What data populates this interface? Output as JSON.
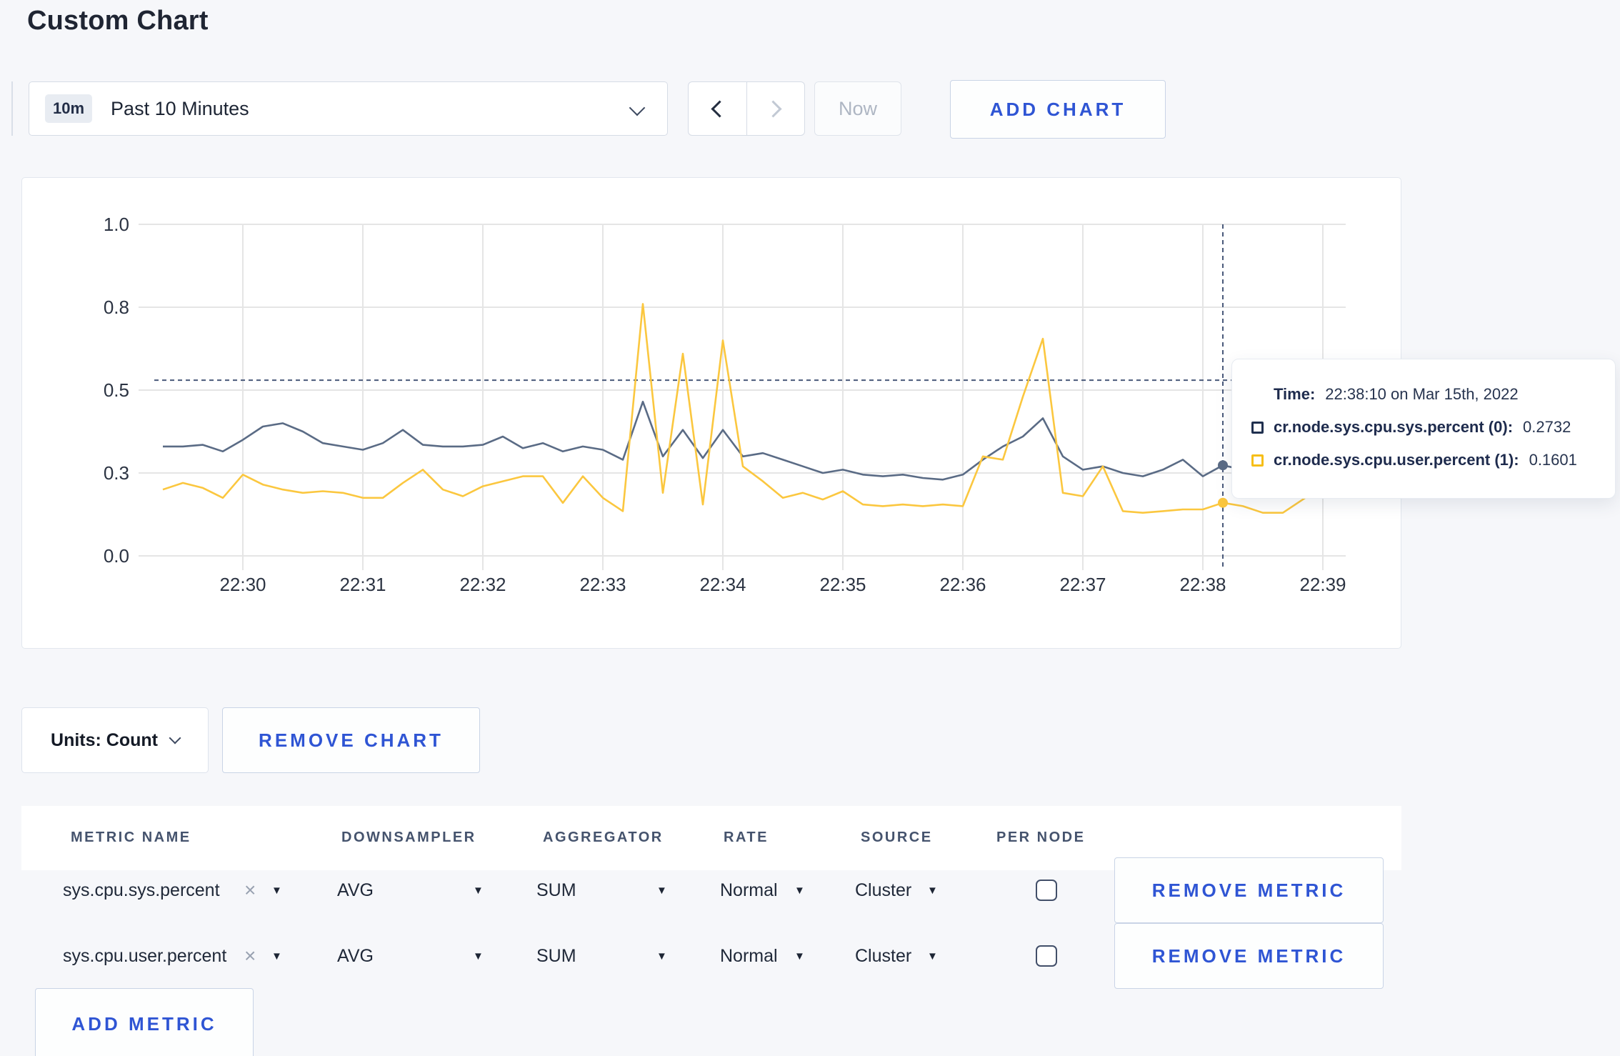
{
  "page": {
    "title": "Custom Chart"
  },
  "toolbar": {
    "range_badge": "10m",
    "range_label": "Past 10 Minutes",
    "now_label": "Now",
    "add_chart_label": "ADD CHART"
  },
  "chart_data": {
    "type": "line",
    "title": "",
    "xlabel": "",
    "ylabel": "",
    "ylim": [
      0,
      1
    ],
    "grid": true,
    "x_tick_labels": [
      "22:30",
      "22:31",
      "22:32",
      "22:33",
      "22:34",
      "22:35",
      "22:36",
      "22:37",
      "22:38",
      "22:39"
    ],
    "y_ticks": [
      {
        "v": 0.0,
        "label": "0.0"
      },
      {
        "v": 0.25,
        "label": "0.3"
      },
      {
        "v": 0.5,
        "label": "0.5"
      },
      {
        "v": 0.75,
        "label": "0.8"
      },
      {
        "v": 1.0,
        "label": "1.0"
      }
    ],
    "x_start_label": "22:29:20",
    "x_step_seconds": 10,
    "crosshair": {
      "index": 53,
      "time": "22:38:10",
      "h_value": 0.53
    },
    "series": [
      {
        "name": "cr.node.sys.cpu.sys.percent (0)",
        "color": "#5a6b85",
        "values": [
          0.33,
          0.33,
          0.335,
          0.315,
          0.35,
          0.39,
          0.4,
          0.375,
          0.34,
          0.33,
          0.32,
          0.34,
          0.38,
          0.335,
          0.33,
          0.33,
          0.335,
          0.36,
          0.325,
          0.34,
          0.315,
          0.33,
          0.32,
          0.29,
          0.465,
          0.3,
          0.38,
          0.295,
          0.38,
          0.3,
          0.31,
          0.29,
          0.27,
          0.25,
          0.26,
          0.245,
          0.24,
          0.245,
          0.235,
          0.23,
          0.245,
          0.29,
          0.33,
          0.36,
          0.415,
          0.3,
          0.26,
          0.27,
          0.25,
          0.24,
          0.26,
          0.29,
          0.24,
          0.2732,
          0.26,
          0.27,
          0.26,
          0.27,
          0.28,
          0.3
        ]
      },
      {
        "name": "cr.node.sys.cpu.user.percent (1)",
        "color": "#fbc73f",
        "values": [
          0.2,
          0.22,
          0.205,
          0.175,
          0.245,
          0.215,
          0.2,
          0.19,
          0.195,
          0.19,
          0.175,
          0.175,
          0.22,
          0.26,
          0.2,
          0.18,
          0.21,
          0.225,
          0.24,
          0.24,
          0.16,
          0.24,
          0.175,
          0.135,
          0.76,
          0.19,
          0.61,
          0.155,
          0.65,
          0.27,
          0.225,
          0.175,
          0.19,
          0.17,
          0.195,
          0.155,
          0.15,
          0.155,
          0.15,
          0.155,
          0.15,
          0.3,
          0.29,
          0.48,
          0.655,
          0.19,
          0.18,
          0.27,
          0.135,
          0.13,
          0.135,
          0.14,
          0.14,
          0.1601,
          0.15,
          0.13,
          0.13,
          0.17,
          0.21,
          0.18
        ]
      }
    ]
  },
  "tooltip": {
    "time_label": "Time:",
    "time_value": "22:38:10 on Mar 15th, 2022",
    "rows": [
      {
        "label": "cr.node.sys.cpu.sys.percent (0):",
        "value": "0.2732",
        "swatch_color": "#20304f"
      },
      {
        "label": "cr.node.sys.cpu.user.percent (1):",
        "value": "0.1601",
        "swatch_color": "#f6be18"
      }
    ]
  },
  "chart_controls": {
    "units_label": "Units: Count",
    "remove_chart_label": "REMOVE CHART"
  },
  "metrics_table": {
    "headers": [
      "METRIC NAME",
      "DOWNSAMPLER",
      "AGGREGATOR",
      "RATE",
      "SOURCE",
      "PER NODE"
    ],
    "rows": [
      {
        "metric_name": "sys.cpu.sys.percent",
        "clear_icon": "×",
        "downsampler": "AVG",
        "aggregator": "SUM",
        "rate": "Normal",
        "source": "Cluster",
        "per_node_checked": false,
        "remove_label": "REMOVE METRIC"
      },
      {
        "metric_name": "sys.cpu.user.percent",
        "clear_icon": "×",
        "downsampler": "AVG",
        "aggregator": "SUM",
        "rate": "Normal",
        "source": "Cluster",
        "per_node_checked": false,
        "remove_label": "REMOVE METRIC"
      }
    ],
    "add_metric_label": "ADD METRIC"
  },
  "colors": {
    "accent_blue": "#2f55d4",
    "page_background": "#f6f7fa",
    "grid_line": "#e5e5e5",
    "crosshair": "#49597a"
  }
}
